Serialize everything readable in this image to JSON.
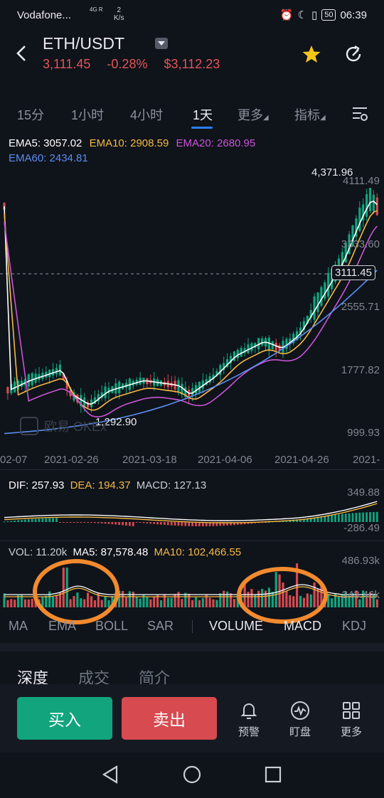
{
  "status_bar": {
    "carrier": "Vodafone...",
    "network": "4G R",
    "speed_value": "2",
    "speed_unit": "K/s",
    "battery": "50",
    "time": "06:39"
  },
  "header": {
    "pair": "ETH/USDT",
    "last_price": "3,111.45",
    "change": "-0.28%",
    "usd_price": "$3,112.23"
  },
  "tabs": [
    "15分",
    "1小时",
    "4小时",
    "1天",
    "更多",
    "指标"
  ],
  "ema": {
    "ema5": "EMA5: 3057.02",
    "ema10": "EMA10: 2908.59",
    "ema20": "EMA20: 2680.95",
    "ema60": "EMA60: 2434.81"
  },
  "chart_data": {
    "type": "candlestick",
    "price_axis": {
      "labels": [
        "4111.49",
        "3333.60",
        "2555.71",
        "1777.82",
        "999.93"
      ]
    },
    "current_price": "3111.45",
    "high_label": "4,371.96",
    "low_label": "1,292.90",
    "x_labels": [
      "02-07",
      "2021-02-26",
      "2021-03-18",
      "2021-04-06",
      "2021-04-26",
      "2021-"
    ],
    "watermark": "欧易 OKEx",
    "colors": {
      "up": "#12a47d",
      "down": "#d64a50",
      "ema5": "#ffffff",
      "ema10": "#f5b944",
      "ema20": "#c955d6",
      "ema60": "#5b8ef0"
    }
  },
  "macd": {
    "dif": "DIF: 257.93",
    "dea": "DEA: 194.37",
    "macd": "MACD: 127.13",
    "axis_top": "349.88",
    "axis_bottom": "-286.49"
  },
  "volume": {
    "vol": "VOL: 11.20k",
    "ma5": "MA5: 87,578.48",
    "ma10": "MA10: 102,466.55",
    "axis_top": "486.93k",
    "axis_mid": "243.46k"
  },
  "indicator_tabs": [
    "MA",
    "EMA",
    "BOLL",
    "SAR",
    "VOLUME",
    "MACD",
    "KDJ"
  ],
  "bottom_tabs": [
    "深度",
    "成交",
    "简介"
  ],
  "actions": {
    "buy": "买入",
    "sell": "卖出",
    "alert": "预警",
    "watch": "盯盘",
    "more": "更多"
  }
}
